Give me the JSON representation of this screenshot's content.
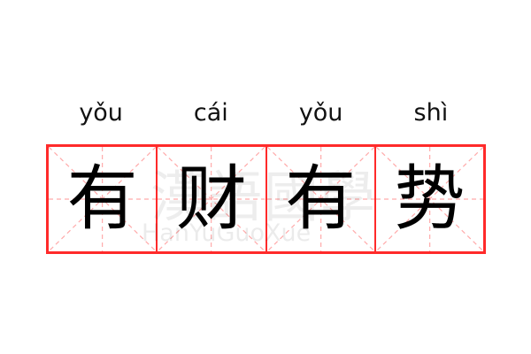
{
  "idiom": {
    "syllables": [
      {
        "pinyin": "yǒu",
        "char": "有"
      },
      {
        "pinyin": "cái",
        "char": "财"
      },
      {
        "pinyin": "yǒu",
        "char": "有"
      },
      {
        "pinyin": "shì",
        "char": "势"
      }
    ]
  },
  "watermark": {
    "text": "漢語國學",
    "latin": "HanYuGuoXue"
  },
  "colors": {
    "grid": "#ff2a2a",
    "guide": "#ffaaaa",
    "text": "#000000"
  }
}
